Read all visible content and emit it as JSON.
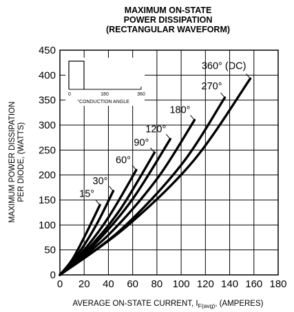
{
  "chart_data": {
    "type": "line",
    "title": [
      "MAXIMUM ON-STATE",
      "POWER DISSIPATION",
      "(RECTANGULAR WAVEFORM)"
    ],
    "xlabel": "AVERAGE ON-STATE CURRENT, I",
    "xlabel_sub": "F(avg)",
    "xlabel_tail": ", (AMPERES)",
    "ylabel": [
      "MAXIMUM POWER DISSIPATION",
      "PER DIODE, (WATTS)"
    ],
    "xlim": [
      0,
      180
    ],
    "ylim": [
      0,
      450
    ],
    "x_ticks": [
      "0",
      "20",
      "40",
      "60",
      "80",
      "100",
      "120",
      "140",
      "160",
      "180"
    ],
    "y_ticks": [
      "0",
      "50",
      "100",
      "150",
      "200",
      "250",
      "300",
      "350",
      "400",
      "450"
    ],
    "grid": true,
    "series": [
      {
        "name": "15°",
        "x": [
          0,
          10,
          20,
          33
        ],
        "y": [
          0,
          30,
          75,
          140
        ]
      },
      {
        "name": "30°",
        "x": [
          0,
          15,
          30,
          44
        ],
        "y": [
          0,
          42,
          100,
          168
        ]
      },
      {
        "name": "60°",
        "x": [
          0,
          20,
          40,
          63
        ],
        "y": [
          0,
          50,
          115,
          210
        ]
      },
      {
        "name": "90°",
        "x": [
          0,
          25,
          50,
          78
        ],
        "y": [
          0,
          57,
          132,
          245
        ]
      },
      {
        "name": "120°",
        "x": [
          0,
          30,
          60,
          91
        ],
        "y": [
          0,
          65,
          152,
          272
        ]
      },
      {
        "name": "180°",
        "x": [
          0,
          40,
          80,
          111
        ],
        "y": [
          0,
          80,
          192,
          310
        ]
      },
      {
        "name": "270°",
        "x": [
          0,
          50,
          100,
          136
        ],
        "y": [
          0,
          90,
          220,
          355
        ]
      },
      {
        "name": "360° (DC)",
        "x": [
          0,
          55,
          110,
          157
        ],
        "y": [
          0,
          97,
          228,
          393
        ]
      }
    ],
    "inset": {
      "x_ticks": [
        "0",
        "180",
        "360"
      ],
      "label": "°CONDUCTION ANGLE"
    }
  }
}
